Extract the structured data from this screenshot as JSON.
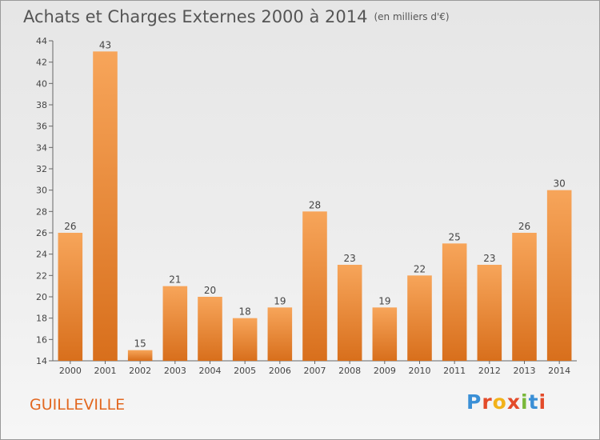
{
  "header": {
    "title": "Achats et Charges Externes 2000 à 2014",
    "unit": "(en milliers d'€)"
  },
  "footer": {
    "commune": "GUILLEVILLE",
    "logo_text": "Proxiti",
    "logo_colors": [
      "#3a8fd6",
      "#e34b2a",
      "#f2b21a",
      "#e34b2a",
      "#7ab83a",
      "#3a8fd6",
      "#e34b2a"
    ]
  },
  "chart_data": {
    "type": "bar",
    "categories": [
      "2000",
      "2001",
      "2002",
      "2003",
      "2004",
      "2005",
      "2006",
      "2007",
      "2008",
      "2009",
      "2010",
      "2011",
      "2012",
      "2013",
      "2014"
    ],
    "values": [
      26,
      43,
      15,
      21,
      20,
      18,
      19,
      28,
      23,
      19,
      22,
      25,
      23,
      26,
      30
    ],
    "ylim": [
      14,
      44
    ],
    "yticks": [
      14,
      16,
      18,
      20,
      22,
      24,
      26,
      28,
      30,
      32,
      34,
      36,
      38,
      40,
      42,
      44
    ],
    "grid": false,
    "bar_color_top": "#f7a55a",
    "bar_color_bottom": "#d86f1c",
    "axis_color": "#666666",
    "label_color": "#444444"
  }
}
